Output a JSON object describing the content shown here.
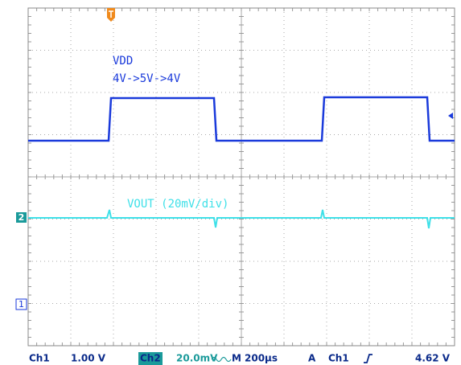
{
  "waveform_labels": {
    "vdd": "VDD",
    "vdd_steps": "4V->5V->4V",
    "vout": "VOUT (20mV/div)"
  },
  "markers": {
    "ch2": "2",
    "ch1": "1"
  },
  "status_bar": {
    "ch1": "Ch1",
    "ch1_scale": "1.00 V",
    "ch2": "Ch2",
    "ch2_scale": "20.0mV",
    "timebase_label": "M",
    "timebase": "200µs",
    "trigger_mode": "A",
    "trigger_source": "Ch1",
    "trigger_level": "4.62 V"
  }
}
